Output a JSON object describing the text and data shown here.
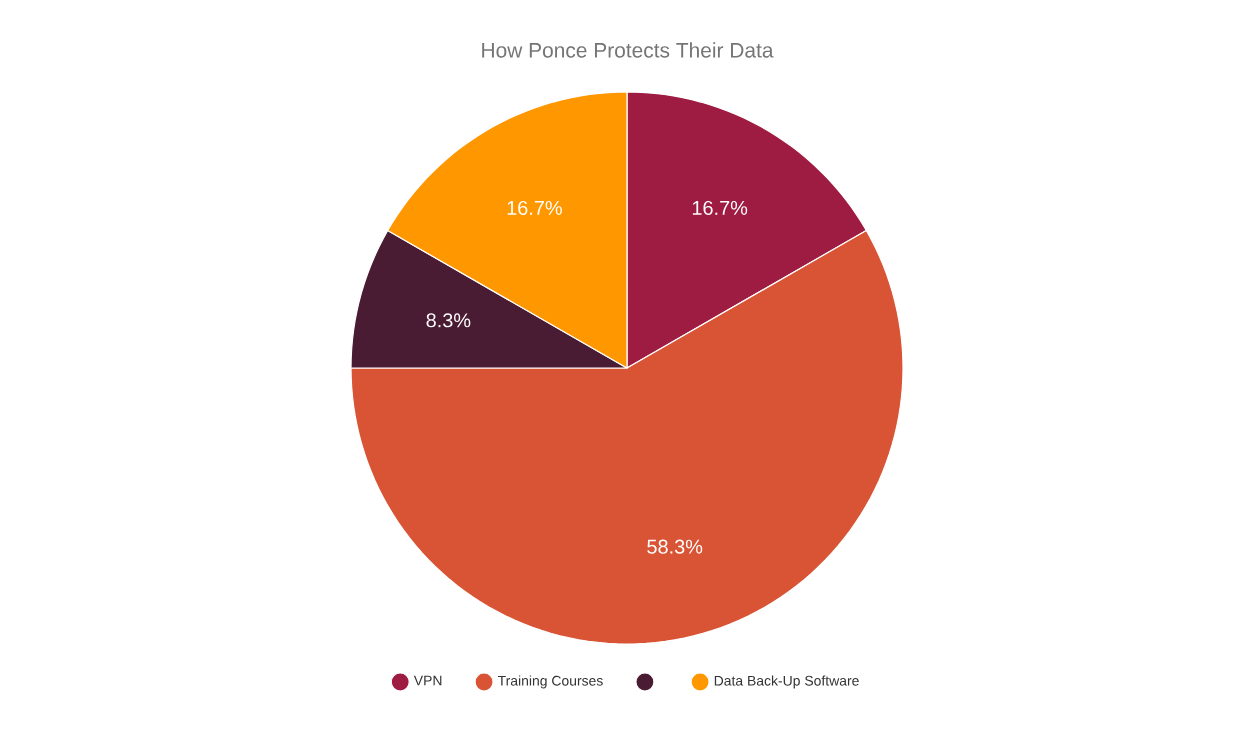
{
  "chart_data": {
    "type": "pie",
    "title": "How Ponce Protects Their Data",
    "categories": [
      "VPN",
      "Training Courses",
      null,
      "Data Back-Up Software"
    ],
    "values": [
      16.7,
      58.3,
      8.3,
      16.7
    ],
    "colors": [
      "#9e1b42",
      "#d95434",
      "#4a1c33",
      "#ff9800"
    ],
    "value_labels": [
      "16.7%",
      "58.3%",
      "8.3%",
      "16.7%"
    ],
    "legend": "bottom"
  }
}
